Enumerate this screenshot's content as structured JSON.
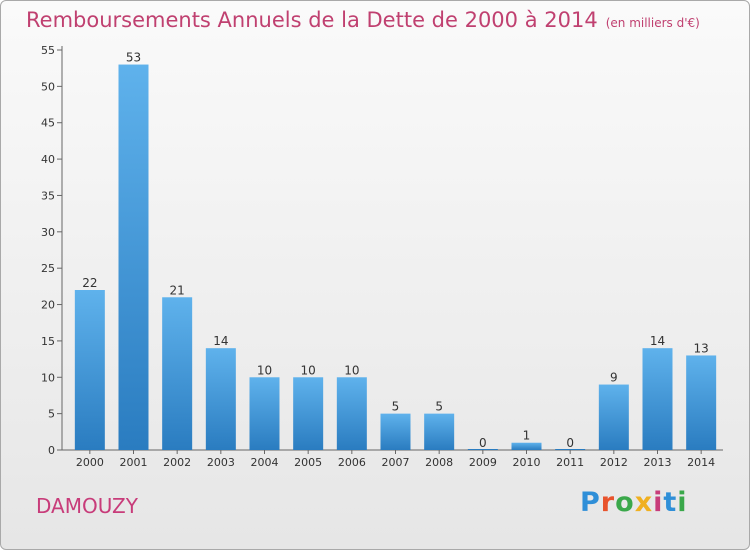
{
  "title": "Remboursements Annuels de la Dette de 2000 à 2014",
  "unit": "(en milliers d'€)",
  "town": "DAMOUZY",
  "logo": {
    "text": "Proxiti",
    "colors": [
      "#2f8fd8",
      "#e8532c",
      "#3aa84a",
      "#f0b020",
      "#c83c7a",
      "#2f8fd8",
      "#3aa84a"
    ]
  },
  "colors": {
    "bar_light": "#5fb2ec",
    "bar_dark": "#2a7cc0",
    "title": "#c04070"
  },
  "chart_data": {
    "type": "bar",
    "categories": [
      "2000",
      "2001",
      "2002",
      "2003",
      "2004",
      "2005",
      "2006",
      "2007",
      "2008",
      "2009",
      "2010",
      "2011",
      "2012",
      "2013",
      "2014"
    ],
    "values": [
      22,
      53,
      21,
      14,
      10,
      10,
      10,
      5,
      5,
      0,
      1,
      0,
      9,
      14,
      13
    ],
    "title": "Remboursements Annuels de la Dette de 2000 à 2014",
    "subtitle": "(en milliers d'€)",
    "ylim": [
      0,
      55
    ],
    "yticks": [
      0,
      5,
      10,
      15,
      20,
      25,
      30,
      35,
      40,
      45,
      50,
      55
    ],
    "grid": false,
    "legend": "none"
  }
}
